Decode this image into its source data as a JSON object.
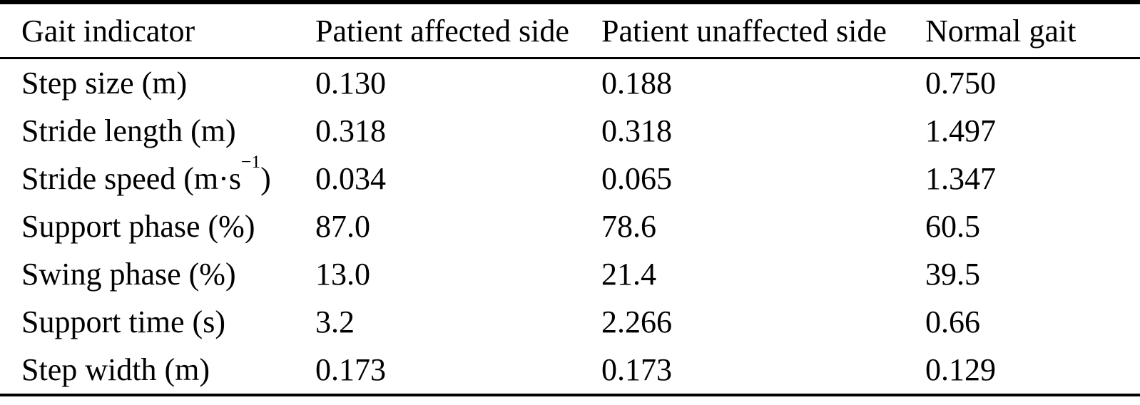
{
  "page": {
    "background_color": "#ffffff",
    "text_color": "#000000",
    "rule_color": "#000000"
  },
  "table": {
    "columns": [
      "Gait indicator",
      "Patient affected side",
      "Patient unaffected side",
      "Normal gait"
    ],
    "rows": [
      {
        "label": "Step size (m)",
        "values": [
          "0.130",
          "0.188",
          "0.750"
        ]
      },
      {
        "label": "Stride length (m)",
        "values": [
          "0.318",
          "0.318",
          "1.497"
        ]
      },
      {
        "label": "Stride speed (m·s",
        "label_sup": "−1",
        "label_end": ")",
        "values": [
          "0.034",
          "0.065",
          "1.347"
        ]
      },
      {
        "label": "Support phase (%)",
        "values": [
          "87.0",
          "78.6",
          "60.5"
        ]
      },
      {
        "label": "Swing phase (%)",
        "values": [
          "13.0",
          "21.4",
          "39.5"
        ]
      },
      {
        "label": "Support time (s)",
        "values": [
          "3.2",
          "2.266",
          "0.66"
        ]
      },
      {
        "label": "Step width (m)",
        "values": [
          "0.173",
          "0.173",
          "0.129"
        ]
      }
    ]
  }
}
